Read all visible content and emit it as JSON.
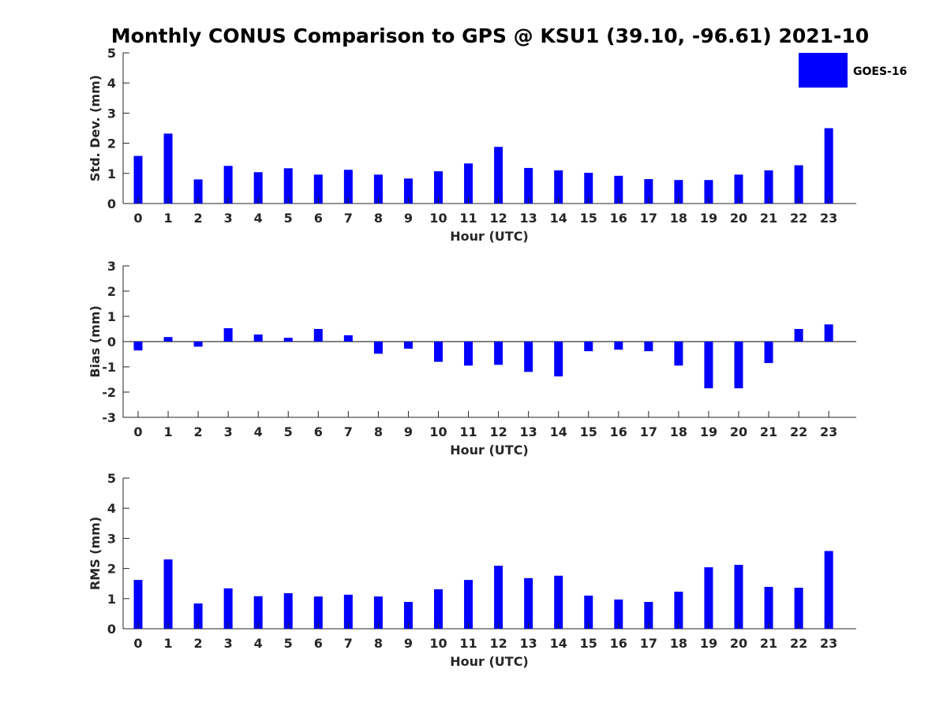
{
  "title": "Monthly CONUS Comparison to GPS @ KSU1 (39.10, -96.61) 2021-10",
  "legend": {
    "label": "GOES-16",
    "color": "#0000ff",
    "placement": "top-right"
  },
  "chart_data": [
    {
      "id": "stddev",
      "type": "bar",
      "categories": [
        "0",
        "1",
        "2",
        "3",
        "4",
        "5",
        "6",
        "7",
        "8",
        "9",
        "10",
        "11",
        "12",
        "13",
        "14",
        "15",
        "16",
        "17",
        "18",
        "19",
        "20",
        "21",
        "22",
        "23"
      ],
      "series": [
        {
          "name": "GOES-16",
          "values": [
            1.58,
            2.32,
            0.8,
            1.25,
            1.04,
            1.17,
            0.96,
            1.12,
            0.96,
            0.83,
            1.07,
            1.33,
            1.88,
            1.18,
            1.1,
            1.02,
            0.92,
            0.81,
            0.78,
            0.78,
            0.96,
            1.1,
            1.27,
            2.5
          ]
        }
      ],
      "xlabel": "Hour (UTC)",
      "ylabel": "Std. Dev. (mm)",
      "ylim": [
        0,
        5
      ],
      "yticks": [
        "0",
        "1",
        "2",
        "3",
        "4",
        "5"
      ],
      "grid": false
    },
    {
      "id": "bias",
      "type": "bar",
      "categories": [
        "0",
        "1",
        "2",
        "3",
        "4",
        "5",
        "6",
        "7",
        "8",
        "9",
        "10",
        "11",
        "12",
        "13",
        "14",
        "15",
        "16",
        "17",
        "18",
        "19",
        "20",
        "21",
        "22",
        "23"
      ],
      "series": [
        {
          "name": "GOES-16",
          "values": [
            -0.35,
            0.18,
            -0.2,
            0.53,
            0.28,
            0.15,
            0.5,
            0.25,
            -0.48,
            -0.28,
            -0.8,
            -0.95,
            -0.92,
            -1.2,
            -1.38,
            -0.38,
            -0.32,
            -0.38,
            -0.95,
            -1.85,
            -1.85,
            -0.85,
            0.5,
            0.68
          ]
        }
      ],
      "xlabel": "Hour (UTC)",
      "ylabel": "Bias (mm)",
      "ylim": [
        -3,
        3
      ],
      "yticks": [
        "-3",
        "-2",
        "-1",
        "0",
        "1",
        "2",
        "3"
      ],
      "zero_line": true,
      "grid": false
    },
    {
      "id": "rms",
      "type": "bar",
      "categories": [
        "0",
        "1",
        "2",
        "3",
        "4",
        "5",
        "6",
        "7",
        "8",
        "9",
        "10",
        "11",
        "12",
        "13",
        "14",
        "15",
        "16",
        "17",
        "18",
        "19",
        "20",
        "21",
        "22",
        "23"
      ],
      "series": [
        {
          "name": "GOES-16",
          "values": [
            1.62,
            2.3,
            0.84,
            1.34,
            1.08,
            1.18,
            1.07,
            1.13,
            1.07,
            0.89,
            1.31,
            1.62,
            2.09,
            1.68,
            1.76,
            1.1,
            0.97,
            0.89,
            1.23,
            2.04,
            2.12,
            1.39,
            1.36,
            2.58
          ]
        }
      ],
      "xlabel": "Hour (UTC)",
      "ylabel": "RMS (mm)",
      "ylim": [
        0,
        5
      ],
      "yticks": [
        "0",
        "1",
        "2",
        "3",
        "4",
        "5"
      ],
      "grid": false
    }
  ]
}
